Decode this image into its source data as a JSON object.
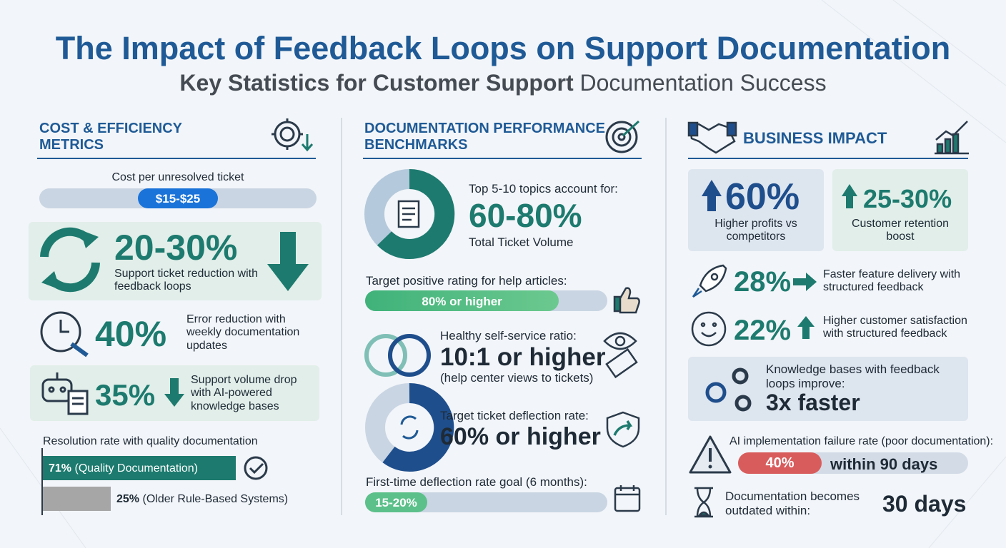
{
  "header": {
    "title": "The Impact of Feedback Loops on Support Documentation",
    "subtitle_bold": "Key Statistics for Customer Support",
    "subtitle_rest": "Documentation Success"
  },
  "cost": {
    "heading": "COST & EFFICIENCY METRICS",
    "cost_label": "Cost per unresolved ticket",
    "cost_value": "$15-$25",
    "reduction": {
      "value": "20-30%",
      "text": "Support ticket reduction with feedback loops"
    },
    "error": {
      "value": "40%",
      "text": "Error reduction with weekly documentation updates"
    },
    "volume": {
      "value": "35%",
      "text": "Support volume drop with AI-powered knowledge bases"
    },
    "resolution": {
      "title": "Resolution rate with quality documentation",
      "bars": [
        {
          "value": 71,
          "label": "71%",
          "name": "(Quality Documentation)"
        },
        {
          "value": 25,
          "label": "25%",
          "name": "(Older Rule-Based Systems)"
        }
      ]
    }
  },
  "benchmarks": {
    "heading": "DOCUMENTATION PERFORMANCE BENCHMARKS",
    "topics": {
      "lead": "Top 5-10 topics account for:",
      "value": "60-80%",
      "text": "Total Ticket Volume"
    },
    "rating": {
      "lead": "Target positive rating for help articles:",
      "value": 80,
      "label": "80% or higher"
    },
    "ratio": {
      "lead": "Healthy self-service ratio:",
      "value": "10:1 or higher",
      "text": "(help center views to tickets)"
    },
    "deflection": {
      "lead": "Target ticket deflection rate:",
      "value": "60% or higher"
    },
    "first_time": {
      "lead": "First-time deflection rate goal (6 months):",
      "value": "15-20%"
    }
  },
  "impact": {
    "heading": "BUSINESS IMPACT",
    "profits": {
      "value": "60%",
      "text": "Higher profits vs competitors"
    },
    "retention": {
      "value": "25-30%",
      "text": "Customer retention boost"
    },
    "delivery": {
      "value": "28%",
      "text": "Faster feature delivery with structured feedback"
    },
    "satisfaction": {
      "value": "22%",
      "text": "Higher customer satisfaction with structured feedback"
    },
    "knowledge": {
      "text": "Knowledge bases with feedback loops improve:",
      "value": "3x faster"
    },
    "failure": {
      "text": "AI implementation failure rate (poor documentation):",
      "value": "40%",
      "suffix": "within 90 days"
    },
    "outdated": {
      "text": "Documentation becomes outdated within:",
      "value": "30 days"
    }
  }
}
